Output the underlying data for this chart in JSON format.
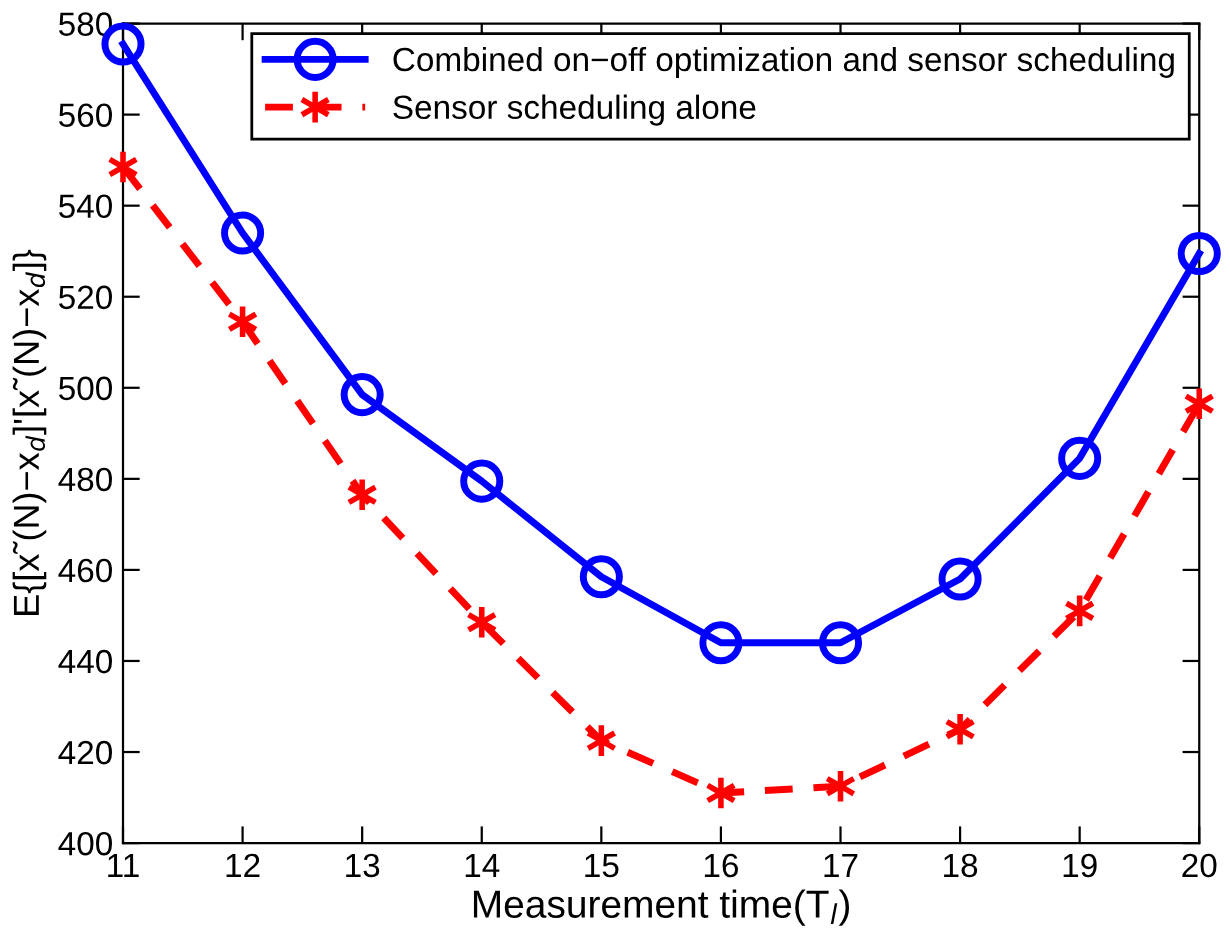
{
  "chart_data": {
    "type": "line",
    "xlabel": "Measurement time(T$_{l}$)",
    "ylabel": "E{[x˜(N)−x$_{d}$]'[x˜(N)−x$_{d}$]}",
    "x": [
      11,
      12,
      13,
      14,
      15,
      16,
      17,
      18,
      19,
      20
    ],
    "series": [
      {
        "name": "Combined on−off optimization and sensor scheduling",
        "color": "#0000ff",
        "marker": "circle",
        "line_style": "solid",
        "values": [
          575.5,
          534,
          498.5,
          479.5,
          458.5,
          444,
          444,
          458,
          484.5,
          529.5
        ]
      },
      {
        "name": "Sensor scheduling alone",
        "color": "#ff0000",
        "marker": "cross",
        "line_style": "dashed",
        "values": [
          548.5,
          514.5,
          476.5,
          448.5,
          422.5,
          411,
          412.5,
          425,
          451,
          496.5
        ]
      }
    ],
    "xlim": [
      11,
      20
    ],
    "xticks": [
      11,
      12,
      13,
      14,
      15,
      16,
      17,
      18,
      19,
      20
    ],
    "ylim": [
      400,
      580
    ],
    "yticks": [
      400,
      420,
      440,
      460,
      480,
      500,
      520,
      540,
      560,
      580
    ],
    "grid": false,
    "legend": "top right"
  }
}
